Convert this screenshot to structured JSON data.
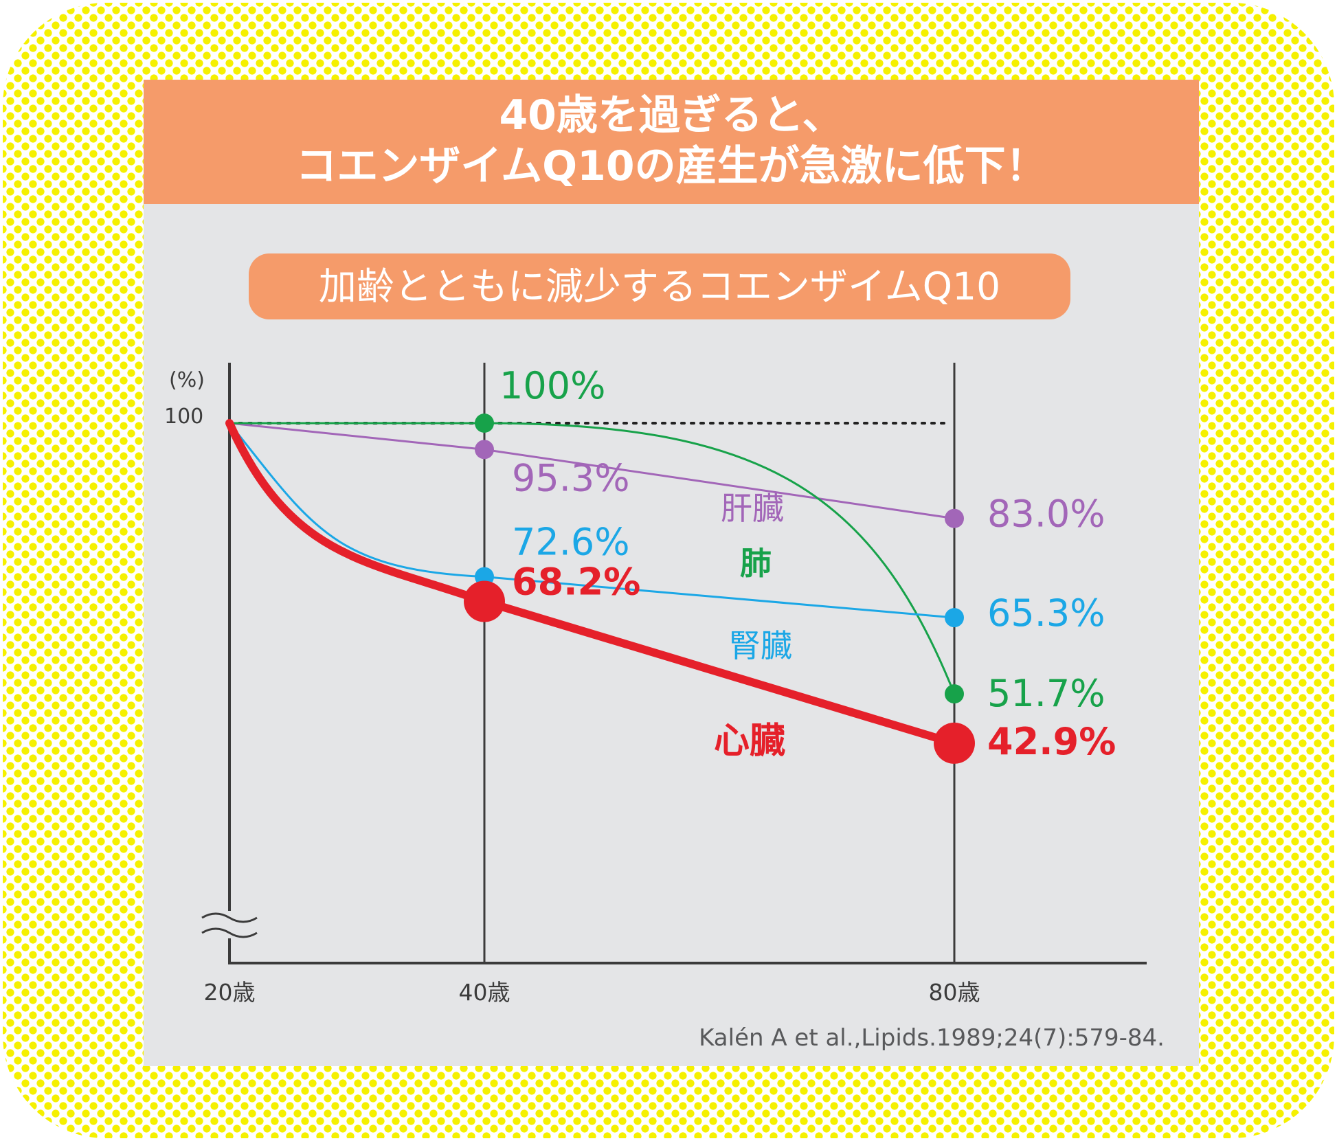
{
  "banner": {
    "line1": "40歳を過ぎると、",
    "line2": "コエンザイムQ10の産生が急激に低下！"
  },
  "subtitle": "加齢とともに減少するコエンザイムQ10",
  "citation": "Kalén A et al.,Lipids.1989;24(7):579-84.",
  "colors": {
    "heart": "#e5202a",
    "liver": "#a266b8",
    "lung": "#17a24a",
    "kidney": "#1ba7e6",
    "axis": "#3b3b3b",
    "banner": "#f59b6a",
    "panel": "#e4e5e7",
    "frame_dots": "#f5f000"
  },
  "chart_data": {
    "type": "line",
    "y_unit_label": "(%)",
    "y_tick_label": "100",
    "x": [
      "20歳",
      "40歳",
      "80歳"
    ],
    "series": [
      {
        "name": "心臓",
        "color": "#e5202a",
        "values": [
          100,
          68.2,
          42.9
        ],
        "labels": [
          "",
          "68.2%",
          "42.9%"
        ]
      },
      {
        "name": "肝臓",
        "color": "#a266b8",
        "values": [
          100,
          95.3,
          83.0
        ],
        "labels": [
          "",
          "95.3%",
          "83.0%"
        ]
      },
      {
        "name": "肺",
        "color": "#17a24a",
        "values": [
          100,
          100,
          51.7
        ],
        "labels": [
          "",
          "100%",
          "51.7%"
        ]
      },
      {
        "name": "腎臓",
        "color": "#1ba7e6",
        "values": [
          100,
          72.6,
          65.3
        ],
        "labels": [
          "",
          "72.6%",
          "65.3%"
        ]
      }
    ],
    "axis_break": true,
    "reference_line": 100
  }
}
